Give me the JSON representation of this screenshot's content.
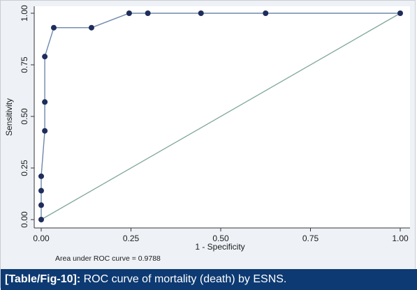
{
  "chart_data": {
    "type": "line",
    "xlabel": "1 - Specificity",
    "ylabel": "Sensitivity",
    "xlim": [
      0,
      1
    ],
    "ylim": [
      0,
      1
    ],
    "x_ticks": [
      "0.00",
      "0.25",
      "0.50",
      "0.75",
      "1.00"
    ],
    "y_ticks": [
      "0.00",
      "0.25",
      "0.50",
      "0.75",
      "1.00"
    ],
    "grid": false,
    "series": [
      {
        "points": [
          [
            0.0,
            0.0
          ],
          [
            0.0,
            0.07
          ],
          [
            0.0,
            0.14
          ],
          [
            0.0,
            0.21
          ],
          [
            0.01,
            0.43
          ],
          [
            0.01,
            0.57
          ],
          [
            0.01,
            0.79
          ],
          [
            0.035,
            0.93
          ],
          [
            0.14,
            0.93
          ],
          [
            0.245,
            1.0
          ],
          [
            0.297,
            1.0
          ],
          [
            0.445,
            1.0
          ],
          [
            0.625,
            1.0
          ],
          [
            1.0,
            1.0
          ]
        ],
        "color": "#6d87ab",
        "marker_color": "#1e2d5c"
      },
      {
        "points": [
          [
            0,
            0
          ],
          [
            1,
            1
          ]
        ],
        "color": "#7fa79a"
      }
    ],
    "annotation": "Area under ROC curve = 0.9788"
  },
  "caption": {
    "label": "[Table/Fig-10]:",
    "text": " ROC curve of mortality (death) by ESNS."
  },
  "colors": {
    "plot_background": "#ffffff",
    "figure_background": "#eef2f7",
    "caption_background": "#0d3a72",
    "caption_text": "#ffffff"
  }
}
